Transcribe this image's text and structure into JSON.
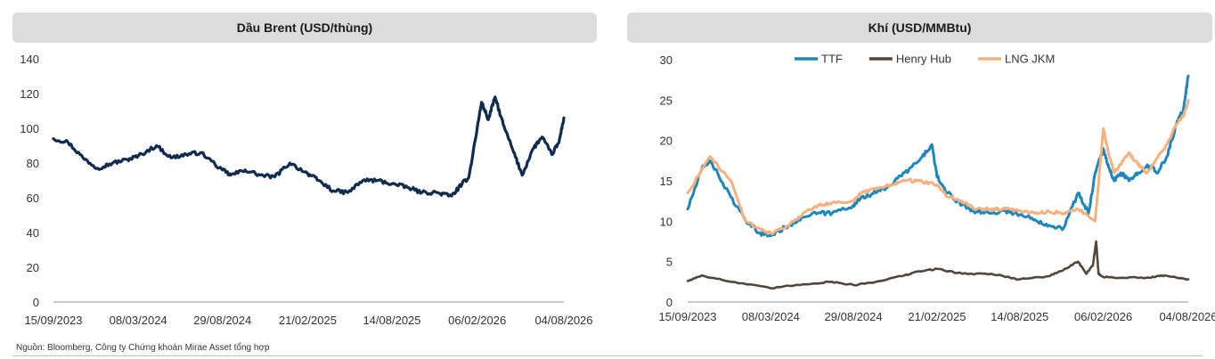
{
  "chart_data": [
    {
      "type": "line",
      "title": "Dầu Brent (USD/thùng)",
      "xlabel": "",
      "ylabel": "",
      "x_ticks": [
        "15/09/2023",
        "08/03/2024",
        "29/08/2024",
        "21/02/2025",
        "14/08/2025",
        "06/02/2026",
        "04/08/2026"
      ],
      "y_ticks": [
        "0",
        "20",
        "40",
        "60",
        "80",
        "100",
        "120",
        "140"
      ],
      "ylim": [
        0,
        140
      ],
      "grid": false,
      "legend": "none",
      "series": [
        {
          "color": "#0f2c4e",
          "x": [
            "15/09/2023",
            "15/10/2023",
            "15/11/2023",
            "15/12/2023",
            "15/01/2024",
            "15/02/2024",
            "08/03/2024",
            "15/04/2024",
            "15/05/2024",
            "15/06/2024",
            "15/07/2024",
            "29/08/2024",
            "15/09/2024",
            "15/10/2024",
            "15/11/2024",
            "15/12/2024",
            "15/01/2025",
            "21/02/2025",
            "15/03/2025",
            "15/04/2025",
            "15/05/2025",
            "15/06/2025",
            "15/07/2025",
            "14/08/2025",
            "15/09/2025",
            "15/10/2025",
            "15/11/2025",
            "15/12/2025",
            "06/01/2026",
            "20/01/2026",
            "06/02/2026",
            "15/02/2026",
            "01/03/2026",
            "15/03/2026",
            "01/04/2026",
            "20/04/2026",
            "10/05/2026",
            "01/06/2026",
            "20/06/2026",
            "10/07/2026",
            "25/07/2026",
            "04/08/2026"
          ],
          "values": [
            94,
            92,
            83,
            77,
            80,
            82,
            84,
            90,
            83,
            85,
            86,
            76,
            73,
            76,
            73,
            72,
            80,
            74,
            70,
            64,
            63,
            70,
            70,
            68,
            66,
            63,
            63,
            61,
            68,
            72,
            100,
            115,
            105,
            118,
            102,
            88,
            73,
            88,
            95,
            85,
            92,
            106
          ]
        }
      ]
    },
    {
      "type": "line",
      "title": "Khí (USD/MMBtu)",
      "xlabel": "",
      "ylabel": "",
      "x_ticks": [
        "15/09/2023",
        "08/03/2024",
        "29/08/2024",
        "21/02/2025",
        "14/08/2025",
        "06/02/2026",
        "04/08/2026"
      ],
      "y_ticks": [
        "0",
        "5",
        "10",
        "15",
        "20",
        "25",
        "30"
      ],
      "ylim": [
        0,
        30
      ],
      "grid": false,
      "legend": "top",
      "series": [
        {
          "name": "TTF",
          "color": "#1d87bc",
          "x": [
            "15/09/2023",
            "15/10/2023",
            "01/11/2023",
            "15/12/2023",
            "15/01/2024",
            "15/02/2024",
            "08/03/2024",
            "15/04/2024",
            "15/05/2024",
            "15/06/2024",
            "15/07/2024",
            "29/08/2024",
            "15/09/2024",
            "15/10/2024",
            "15/11/2024",
            "15/12/2024",
            "15/01/2025",
            "10/02/2025",
            "21/02/2025",
            "15/03/2025",
            "15/04/2025",
            "15/05/2025",
            "15/06/2025",
            "15/07/2025",
            "14/08/2025",
            "15/09/2025",
            "15/10/2025",
            "15/11/2025",
            "15/12/2025",
            "06/01/2026",
            "20/01/2026",
            "06/02/2026",
            "15/02/2026",
            "01/03/2026",
            "15/03/2026",
            "01/04/2026",
            "20/04/2026",
            "10/05/2026",
            "01/06/2026",
            "20/06/2026",
            "10/07/2026",
            "25/07/2026",
            "04/08/2026"
          ],
          "values": [
            11.5,
            16.5,
            17.5,
            13,
            10,
            8.5,
            8.2,
            9.5,
            10.5,
            11,
            11,
            12,
            13,
            13.5,
            14.5,
            16,
            17.5,
            19.5,
            15.5,
            13.5,
            12,
            11.2,
            11,
            11.3,
            10.8,
            10.2,
            9.5,
            9.2,
            13.5,
            11,
            16,
            19,
            17,
            15,
            16,
            15,
            16,
            17,
            16,
            18,
            22,
            24,
            28
          ]
        },
        {
          "name": "Henry Hub",
          "color": "#53453a",
          "x": [
            "15/09/2023",
            "15/10/2023",
            "15/12/2023",
            "08/03/2024",
            "15/05/2024",
            "15/07/2024",
            "29/08/2024",
            "15/10/2024",
            "15/12/2024",
            "15/01/2025",
            "21/02/2025",
            "15/04/2025",
            "15/06/2025",
            "14/08/2025",
            "15/10/2025",
            "15/11/2025",
            "15/12/2025",
            "01/01/2026",
            "15/01/2026",
            "22/01/2026",
            "27/01/2026",
            "06/02/2026",
            "15/03/2026",
            "15/05/2026",
            "15/06/2026",
            "04/08/2026"
          ],
          "values": [
            2.6,
            3.3,
            2.5,
            1.7,
            2.2,
            2.5,
            2.1,
            2.5,
            3.3,
            3.8,
            4.1,
            3.5,
            3.5,
            2.8,
            3.2,
            4,
            5,
            3.5,
            4.5,
            7.5,
            3.5,
            3.1,
            3.0,
            3.0,
            3.3,
            2.8
          ]
        },
        {
          "name": "LNG JKM",
          "color": "#f6b17e",
          "x": [
            "15/09/2023",
            "01/11/2023",
            "15/12/2023",
            "15/01/2024",
            "15/02/2024",
            "08/03/2024",
            "15/04/2024",
            "15/05/2024",
            "15/06/2024",
            "15/07/2024",
            "29/08/2024",
            "15/09/2024",
            "15/10/2024",
            "15/11/2024",
            "15/12/2024",
            "15/01/2025",
            "21/02/2025",
            "15/03/2025",
            "15/04/2025",
            "15/05/2025",
            "15/06/2025",
            "15/07/2025",
            "14/08/2025",
            "15/09/2025",
            "15/10/2025",
            "15/11/2025",
            "15/12/2025",
            "20/01/2026",
            "06/02/2026",
            "15/02/2026",
            "01/03/2026",
            "15/03/2026",
            "01/04/2026",
            "20/04/2026",
            "10/05/2026",
            "01/06/2026",
            "20/06/2026",
            "10/07/2026",
            "25/07/2026",
            "04/08/2026"
          ],
          "values": [
            13.5,
            18,
            15,
            10,
            9,
            8.5,
            9.5,
            11,
            12,
            12.3,
            12.5,
            13.5,
            14,
            14.5,
            15,
            15,
            14.5,
            13,
            12.5,
            11.5,
            11.5,
            11.5,
            11.3,
            11,
            11.2,
            11,
            11.5,
            10,
            21.5,
            19,
            16,
            17,
            18.5,
            17,
            16,
            18,
            19.5,
            22,
            23,
            25
          ]
        }
      ]
    }
  ],
  "footer": {
    "source": "Nguồn: Bloomberg, Công ty Chứng khoán Mirae Asset tổng hợp"
  }
}
